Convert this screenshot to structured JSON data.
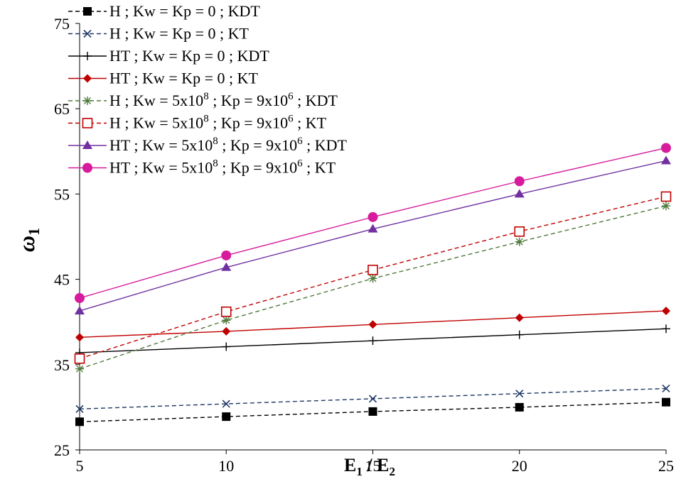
{
  "chart_data": {
    "type": "line",
    "x": [
      5,
      10,
      15,
      20,
      25
    ],
    "xlim": [
      5,
      25
    ],
    "ylim": [
      25,
      75
    ],
    "xticks": [
      "5",
      "10",
      "15",
      "20",
      "25"
    ],
    "yticks": [
      "25",
      "35",
      "45",
      "55",
      "65",
      "75"
    ],
    "xlabel": {
      "base": "E",
      "sub1": "1",
      "mid": " / E",
      "sub2": "2"
    },
    "ylabel": {
      "base": "ω",
      "sub": "1"
    },
    "grid": false,
    "legend_position": "top-left",
    "series": [
      {
        "legend": {
          "main": "H ; Kw = Kp = 0 ; KDT"
        },
        "values": [
          28.3,
          28.9,
          29.5,
          30.0,
          30.6
        ],
        "color": "#000000",
        "dash": true,
        "marker": "square"
      },
      {
        "legend": {
          "main": "H ; Kw = Kp = 0 ; KT"
        },
        "values": [
          29.8,
          30.4,
          31.0,
          31.6,
          32.2
        ],
        "color": "#1f3864",
        "dash": true,
        "marker": "x"
      },
      {
        "legend": {
          "main": "HT ; Kw = Kp = 0 ; KDT"
        },
        "values": [
          36.4,
          37.1,
          37.8,
          38.5,
          39.2
        ],
        "color": "#000000",
        "dash": false,
        "marker": "plus"
      },
      {
        "legend": {
          "main": "HT ; Kw = Kp = 0 ; KT"
        },
        "values": [
          38.2,
          38.9,
          39.7,
          40.5,
          41.3
        ],
        "color": "#c00000",
        "dash": false,
        "marker": "diamond"
      },
      {
        "legend": {
          "pre": "H ; Kw = 5x10",
          "sup1": "8",
          "mid": " ; Kp = 9x10",
          "sup2": "6",
          "post": " ; KDT"
        },
        "values": [
          34.5,
          40.2,
          45.1,
          49.4,
          53.6
        ],
        "color": "#4f7a3a",
        "dash": true,
        "marker": "asterisk"
      },
      {
        "legend": {
          "pre": "H ; Kw = 5x10",
          "sup1": "8",
          "mid": " ; Kp = 9x10",
          "sup2": "6",
          "post": " ; KT"
        },
        "values": [
          35.7,
          41.2,
          46.1,
          50.6,
          54.7
        ],
        "color": "#c00000",
        "dash": true,
        "marker": "open-square"
      },
      {
        "legend": {
          "pre": "HT ; Kw = 5x10",
          "sup1": "8",
          "mid": " ; Kp = 9x10",
          "sup2": "6",
          "post": " ; KDT"
        },
        "values": [
          41.3,
          46.4,
          50.9,
          55.0,
          58.9
        ],
        "color": "#7030a0",
        "dash": false,
        "marker": "triangle"
      },
      {
        "legend": {
          "pre": "HT ; Kw = 5x10",
          "sup1": "8",
          "mid": " ; Kp = 9x10",
          "sup2": "6",
          "post": " ; KT"
        },
        "values": [
          42.8,
          47.8,
          52.3,
          56.5,
          60.4
        ],
        "color": "#d61c9c",
        "dash": false,
        "marker": "circle"
      }
    ]
  }
}
